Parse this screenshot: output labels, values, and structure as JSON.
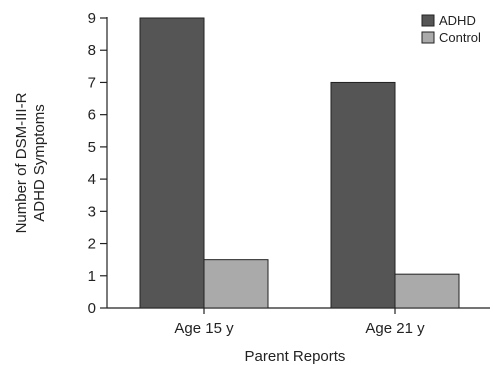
{
  "chart_data": {
    "type": "bar",
    "title": "",
    "xlabel": "Parent Reports",
    "ylabel_lines": [
      "Number of DSM-III-R",
      "ADHD Symptoms"
    ],
    "categories": [
      "Age 15 y",
      "Age 21 y"
    ],
    "series": [
      {
        "name": "ADHD",
        "values": [
          9,
          7
        ],
        "color": "#555555"
      },
      {
        "name": "Control",
        "values": [
          1.5,
          1.05
        ],
        "color": "#aaaaaa"
      }
    ],
    "ylim": [
      0,
      9
    ],
    "yticks": [
      "0",
      "1",
      "2",
      "3",
      "4",
      "5",
      "6",
      "7",
      "8",
      "9"
    ],
    "grid": false,
    "legend": "top-right"
  }
}
